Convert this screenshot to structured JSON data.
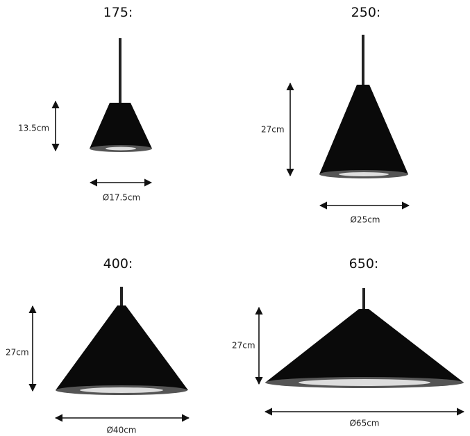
{
  "lamps": [
    {
      "title": "175:",
      "height": "13.5cm",
      "diameter": "Ø17.5cm"
    },
    {
      "title": "250:",
      "height": "27cm",
      "diameter": "Ø25cm"
    },
    {
      "title": "400:",
      "height": "27cm",
      "diameter": "Ø40cm"
    },
    {
      "title": "650:",
      "height": "27cm",
      "diameter": "Ø65cm"
    }
  ]
}
